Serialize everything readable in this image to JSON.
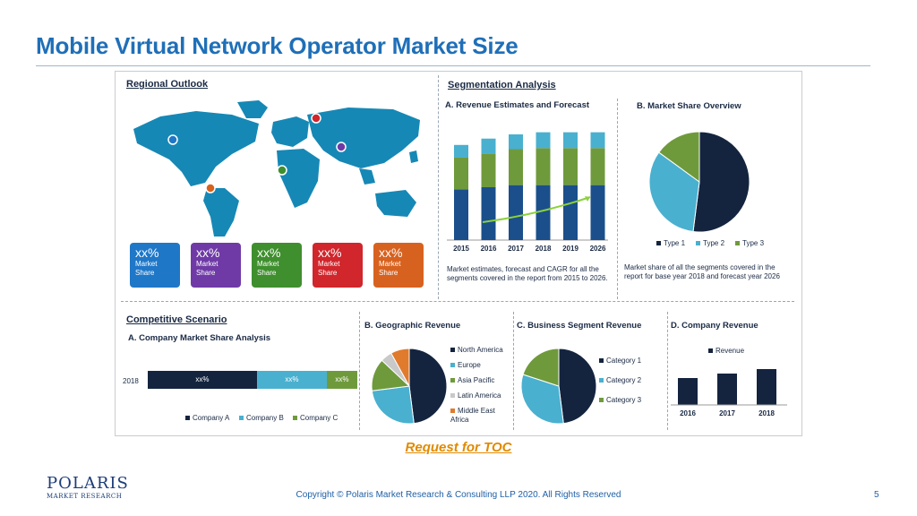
{
  "slide": {
    "title": "Mobile Virtual Network Operator Market Size",
    "toc_link": "Request for TOC",
    "copyright": "Copyright © Polaris Market Research & Consulting LLP 2020. All Rights Reserved",
    "page_number": "5"
  },
  "logo": {
    "name": "POLARIS",
    "tagline": "MARKET RESEARCH"
  },
  "infographic": {
    "regional": {
      "heading": "Regional Outlook",
      "tiles": [
        {
          "pct": "xx%",
          "label": "Market Share",
          "color": "#1f77c8"
        },
        {
          "pct": "xx%",
          "label": "Market Share",
          "color": "#6f3aa6"
        },
        {
          "pct": "xx%",
          "label": "Market Share",
          "color": "#3f8f2e"
        },
        {
          "pct": "xx%",
          "label": "Market Share",
          "color": "#d0262c"
        },
        {
          "pct": "xx%",
          "label": "Market Share",
          "color": "#d7621f"
        }
      ]
    },
    "segmentation": {
      "heading": "Segmentation Analysis",
      "revenue": {
        "title": "A. Revenue Estimates and Forecast",
        "years": [
          "2015",
          "2016",
          "2017",
          "2018",
          "2019",
          "2026"
        ],
        "bars": [
          {
            "seg1": 48,
            "seg2": 30,
            "seg3": 12
          },
          {
            "seg1": 50,
            "seg2": 32,
            "seg3": 14
          },
          {
            "seg1": 52,
            "seg2": 34,
            "seg3": 14
          },
          {
            "seg1": 52,
            "seg2": 35,
            "seg3": 15
          },
          {
            "seg1": 52,
            "seg2": 35,
            "seg3": 15
          },
          {
            "seg1": 52,
            "seg2": 35,
            "seg3": 15
          }
        ],
        "note": "Market estimates, forecast and CAGR for all the segments covered in the report from 2015 to 2026."
      },
      "share": {
        "title": "B. Market Share Overview",
        "slices": [
          {
            "name": "Type 1",
            "value": 52,
            "color": "#14243f"
          },
          {
            "name": "Type 2",
            "value": 33,
            "color": "#4ab0cf"
          },
          {
            "name": "Type 3",
            "value": 15,
            "color": "#6f9a3c"
          }
        ],
        "note": "Market share of all the segments covered in the report for base year 2018 and forecast year 2026"
      }
    },
    "competitive": {
      "heading": "Competitive Scenario",
      "title": "A. Company Market Share Analysis",
      "year": "2018",
      "segments": [
        {
          "name": "Company A",
          "label": "xx%",
          "share": 50,
          "color": "#14243f"
        },
        {
          "name": "Company B",
          "label": "xx%",
          "share": 32,
          "color": "#4ab0cf"
        },
        {
          "name": "Company C",
          "label": "xx%",
          "share": 14,
          "color": "#6f9a3c"
        }
      ]
    },
    "geographic": {
      "title": "B. Geographic Revenue",
      "slices": [
        {
          "name": "North America",
          "value": 48,
          "color": "#14243f"
        },
        {
          "name": "Europe",
          "value": 25,
          "color": "#4ab0cf"
        },
        {
          "name": "Asia Pacific",
          "value": 14,
          "color": "#6f9a3c"
        },
        {
          "name": "Latin America",
          "value": 5,
          "color": "#c9c9c9"
        },
        {
          "name": "Middle East Africa",
          "value": 8,
          "color": "#e07a2c"
        }
      ]
    },
    "business": {
      "title": "C. Business Segment Revenue",
      "slices": [
        {
          "name": "Category 1",
          "value": 48,
          "color": "#14243f"
        },
        {
          "name": "Category 2",
          "value": 32,
          "color": "#4ab0cf"
        },
        {
          "name": "Category 3",
          "value": 20,
          "color": "#6f9a3c"
        }
      ]
    },
    "company": {
      "title": "D. Company Revenue",
      "legend": "Revenue",
      "years": [
        "2016",
        "2017",
        "2018"
      ],
      "values": [
        30,
        35,
        40
      ]
    }
  }
}
